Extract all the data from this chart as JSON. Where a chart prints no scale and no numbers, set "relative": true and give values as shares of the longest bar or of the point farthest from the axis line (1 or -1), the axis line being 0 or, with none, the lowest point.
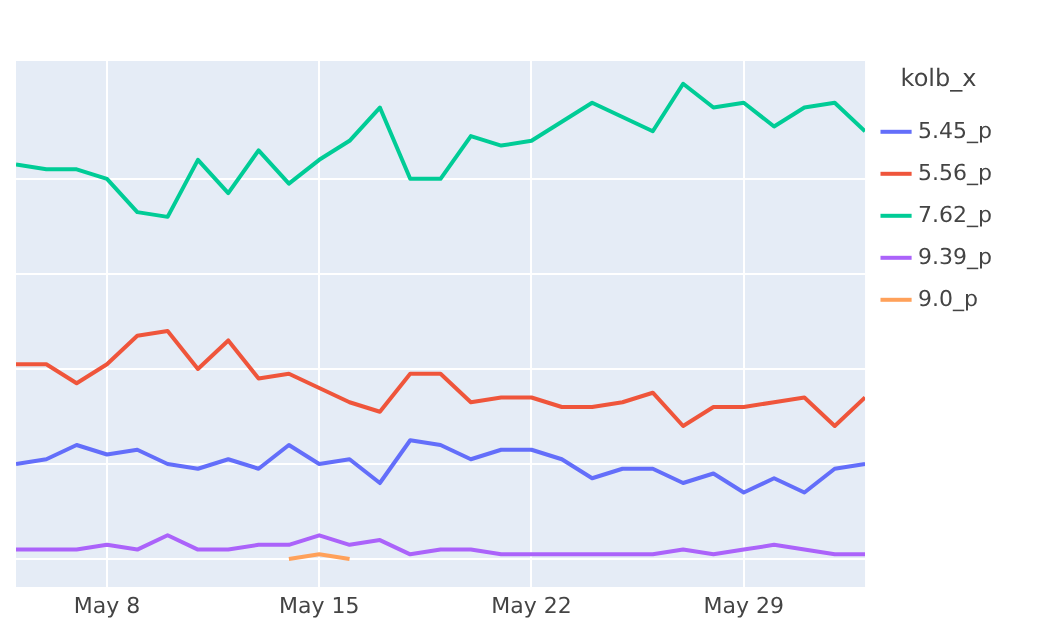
{
  "chart_data": {
    "type": "line",
    "relative": true,
    "legend_title": "kolb_x",
    "legend": "top right",
    "grid": true,
    "marker": "none",
    "line_style": "solid",
    "x": [
      "--05-05",
      "--05-06",
      "--05-07",
      "--05-08",
      "--05-09",
      "--05-10",
      "--05-11",
      "--05-12",
      "--05-13",
      "--05-14",
      "--05-15",
      "--05-16",
      "--05-17",
      "--05-18",
      "--05-19",
      "--05-20",
      "--05-21",
      "--05-22",
      "--05-23",
      "--05-24",
      "--05-25",
      "--05-26",
      "--05-27",
      "--05-28",
      "--05-29",
      "--05-30",
      "--05-31",
      "--06-01",
      "--06-02"
    ],
    "xlim": [
      "--05-05",
      "--06-02"
    ],
    "xticks": [
      {
        "value": "--05-08",
        "label": "May 8"
      },
      {
        "value": "--05-15",
        "label": "May 15"
      },
      {
        "value": "--05-22",
        "label": "May 22"
      },
      {
        "value": "--05-29",
        "label": "May 29"
      }
    ],
    "series": [
      {
        "name": "5.45_p",
        "color": "#636efa",
        "values": [
          0.2,
          0.21,
          0.24,
          0.22,
          0.23,
          0.2,
          0.19,
          0.21,
          0.19,
          0.24,
          0.2,
          0.21,
          0.16,
          0.25,
          0.24,
          0.21,
          0.23,
          0.23,
          0.21,
          0.17,
          0.19,
          0.19,
          0.16,
          0.18,
          0.14,
          0.17,
          0.14,
          0.19,
          0.2
        ]
      },
      {
        "name": "5.56_p",
        "color": "#ef553b",
        "values": [
          0.41,
          0.41,
          0.37,
          0.41,
          0.47,
          0.48,
          0.4,
          0.46,
          0.38,
          0.39,
          0.36,
          0.33,
          0.31,
          0.39,
          0.39,
          0.33,
          0.34,
          0.34,
          0.32,
          0.32,
          0.33,
          0.35,
          0.28,
          0.32,
          0.32,
          0.33,
          0.34,
          0.28,
          0.34
        ]
      },
      {
        "name": "7.62_p",
        "color": "#00cc96",
        "values": [
          0.83,
          0.82,
          0.82,
          0.8,
          0.73,
          0.72,
          0.84,
          0.77,
          0.86,
          0.79,
          0.84,
          0.88,
          0.95,
          0.8,
          0.8,
          0.89,
          0.87,
          0.88,
          0.92,
          0.96,
          0.93,
          0.9,
          1.0,
          0.95,
          0.96,
          0.91,
          0.95,
          0.96,
          0.9
        ]
      },
      {
        "name": "9.39_p",
        "color": "#ab63fa",
        "values": [
          0.02,
          0.02,
          0.02,
          0.03,
          0.02,
          0.05,
          0.02,
          0.02,
          0.03,
          0.03,
          0.05,
          0.03,
          0.04,
          0.01,
          0.02,
          0.02,
          0.01,
          0.01,
          0.01,
          0.01,
          0.01,
          0.01,
          0.02,
          0.01,
          0.02,
          0.03,
          0.02,
          0.01,
          0.01
        ]
      },
      {
        "name": "9.0_p",
        "color": "#ffa15a",
        "values": [
          null,
          null,
          null,
          null,
          null,
          null,
          null,
          null,
          null,
          0,
          0.01,
          0,
          null,
          null,
          null,
          null,
          null,
          null,
          null,
          null,
          null,
          null,
          null,
          null,
          null,
          null,
          null,
          null,
          null
        ]
      }
    ]
  }
}
